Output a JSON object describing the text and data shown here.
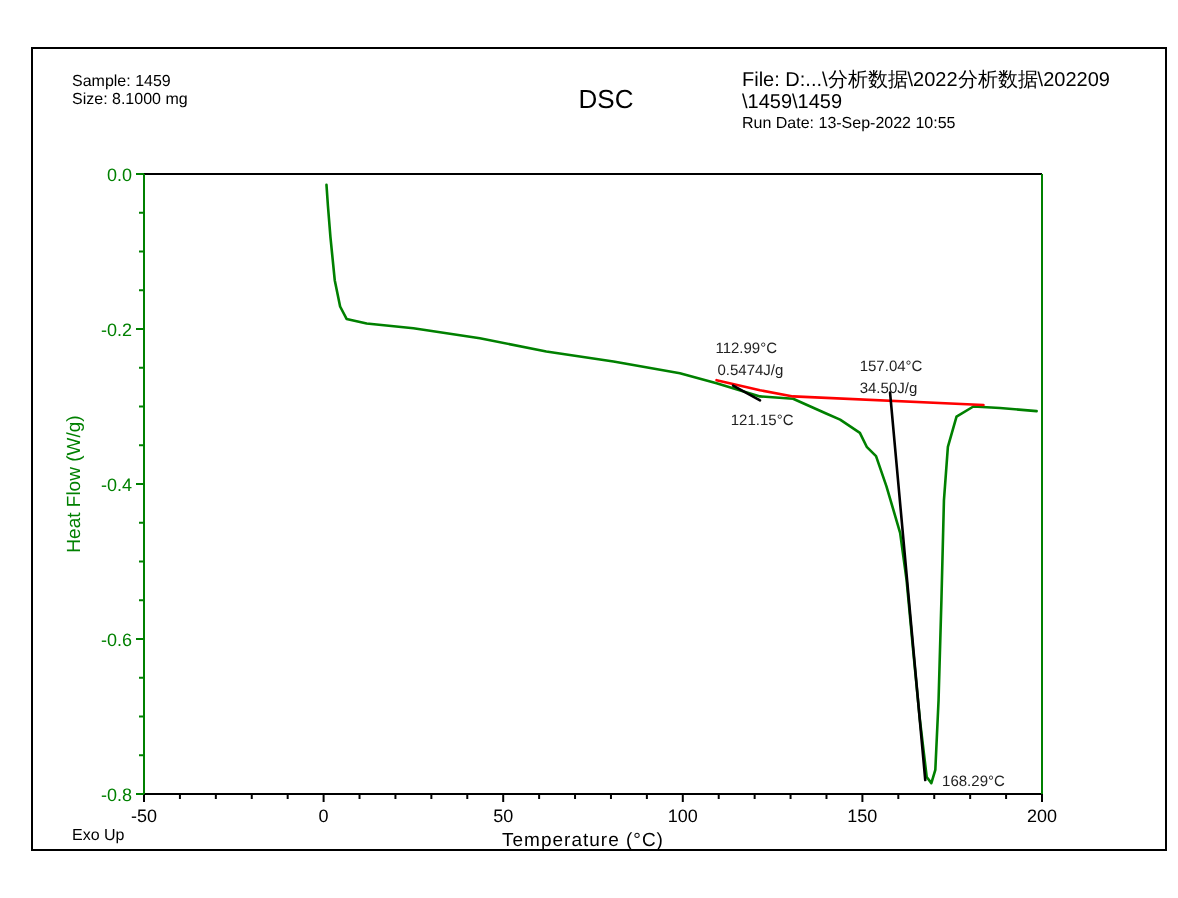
{
  "chart_data": {
    "type": "line",
    "title": "DSC",
    "xlabel": "Temperature (°C)",
    "ylabel": "Heat Flow (W/g)",
    "xlim": [
      -50,
      200
    ],
    "ylim": [
      -0.8,
      0
    ],
    "xticks": [
      -50,
      {
        "value": -40,
        "label": null
      },
      {
        "value": -30,
        "label": null
      },
      {
        "value": -20,
        "label": null
      },
      {
        "value": -10,
        "label": null
      },
      0,
      {
        "value": 10,
        "label": null
      },
      {
        "value": 20,
        "label": null
      },
      {
        "value": 30,
        "label": null
      },
      {
        "value": 40,
        "label": null
      },
      50,
      {
        "value": 60,
        "label": null
      },
      {
        "value": 70,
        "label": null
      },
      {
        "value": 80,
        "label": null
      },
      {
        "value": 90,
        "label": null
      },
      100,
      {
        "value": 110,
        "label": null
      },
      {
        "value": 120,
        "label": null
      },
      {
        "value": 130,
        "label": null
      },
      {
        "value": 140,
        "label": null
      },
      150,
      {
        "value": 160,
        "label": null
      },
      {
        "value": 170,
        "label": null
      },
      {
        "value": 180,
        "label": null
      },
      {
        "value": 190,
        "label": null
      },
      200
    ],
    "yticks": [
      {
        "value": -0.8,
        "label": "-0.8"
      },
      {
        "value": -0.75,
        "label": null
      },
      {
        "value": -0.7,
        "label": null
      },
      {
        "value": -0.65,
        "label": null
      },
      {
        "value": -0.6,
        "label": "-0.6"
      },
      {
        "value": -0.55,
        "label": null
      },
      {
        "value": -0.5,
        "label": null
      },
      {
        "value": -0.45,
        "label": null
      },
      {
        "value": -0.4,
        "label": "-0.4"
      },
      {
        "value": -0.35,
        "label": null
      },
      {
        "value": -0.3,
        "label": null
      },
      {
        "value": -0.25,
        "label": null
      },
      {
        "value": -0.2,
        "label": "-0.2"
      },
      {
        "value": -0.15,
        "label": null
      },
      {
        "value": -0.1,
        "label": null
      },
      {
        "value": -0.05,
        "label": null
      },
      {
        "value": 0,
        "label": "0.0"
      }
    ],
    "series": [
      {
        "color": "#008000",
        "x": [
          0.8,
          1.2,
          1.9,
          3.1,
          4.6,
          6.4,
          12.0,
          25,
          43.5,
          62,
          80.7,
          99.2,
          109.4,
          121.5,
          130.7,
          139.9,
          143.8,
          149.3,
          151.2,
          153.8,
          156.7,
          160.5,
          162.3,
          164.2,
          166.0,
          167.9,
          169.2,
          170.3,
          171.2,
          172.0,
          172.7,
          173.8,
          176.2,
          180.9,
          188.3,
          198.5
        ],
        "values": [
          -0.014,
          -0.041,
          -0.081,
          -0.137,
          -0.171,
          -0.187,
          -0.193,
          -0.199,
          -0.212,
          -0.229,
          -0.242,
          -0.257,
          -0.27,
          -0.287,
          -0.29,
          -0.309,
          -0.317,
          -0.334,
          -0.352,
          -0.364,
          -0.403,
          -0.463,
          -0.524,
          -0.618,
          -0.704,
          -0.778,
          -0.786,
          -0.769,
          -0.679,
          -0.55,
          -0.421,
          -0.352,
          -0.313,
          -0.3,
          -0.302,
          -0.306
        ]
      },
      {
        "color": "#ff0000",
        "x": [
          109.4,
          121.5,
          130.7,
          183.7
        ],
        "values": [
          -0.266,
          -0.279,
          -0.287,
          -0.298
        ]
      },
      {
        "color": "#000000",
        "x": [
          114,
          121.5
        ],
        "values": [
          -0.273,
          -0.292
        ]
      },
      {
        "color": "#000000",
        "x": [
          157.7,
          167.5
        ],
        "values": [
          -0.282,
          -0.782
        ]
      }
    ],
    "annotations": [
      "Sample: 1459",
      "Size:  8.1000 mg",
      "File: D:...\\分析数据\\2022分析数据\\202209\\1459\\1459",
      "Run Date: 13-Sep-2022 10:55",
      "Exo Up",
      {
        "text": "112.99°C",
        "x": 112.99,
        "y": -0.272
      },
      {
        "text": "0.5474J/g",
        "x": 112.99,
        "y": -0.272
      },
      {
        "text": "121.15°C",
        "x": 121.15,
        "y": -0.29
      },
      {
        "text": "157.04°C",
        "x": 157.04,
        "y": -0.293
      },
      {
        "text": "34.50J/g",
        "x": 157.04,
        "y": -0.293
      },
      {
        "text": "168.29°C",
        "x": 168.29,
        "y": -0.785
      }
    ]
  }
}
